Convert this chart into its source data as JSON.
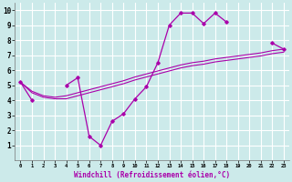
{
  "x": [
    0,
    1,
    2,
    3,
    4,
    5,
    6,
    7,
    8,
    9,
    10,
    11,
    12,
    13,
    14,
    15,
    16,
    17,
    18,
    19,
    20,
    21,
    22,
    23
  ],
  "windchill": [
    5.2,
    4.0,
    null,
    null,
    5.0,
    5.5,
    1.6,
    1.0,
    2.6,
    3.1,
    4.1,
    4.9,
    6.5,
    9.0,
    9.8,
    9.8,
    9.1,
    9.8,
    9.2,
    null,
    null,
    null,
    7.8,
    7.4
  ],
  "temp_line1": [
    5.2,
    4.6,
    4.3,
    4.2,
    4.3,
    4.5,
    4.7,
    4.9,
    5.1,
    5.3,
    5.55,
    5.75,
    5.95,
    6.15,
    6.35,
    6.5,
    6.6,
    6.75,
    6.85,
    6.95,
    7.05,
    7.15,
    7.3,
    7.4
  ],
  "temp_line2": [
    5.2,
    4.5,
    4.2,
    4.1,
    4.1,
    4.3,
    4.5,
    4.7,
    4.9,
    5.1,
    5.35,
    5.55,
    5.75,
    5.95,
    6.15,
    6.3,
    6.4,
    6.55,
    6.65,
    6.75,
    6.85,
    6.95,
    7.1,
    7.2
  ],
  "line_color": "#aa00aa",
  "bg_color": "#cceaea",
  "grid_color": "#ffffff",
  "xlabel": "Windchill (Refroidissement éolien,°C)",
  "xlim": [
    -0.5,
    23.5
  ],
  "ylim": [
    0,
    10.5
  ],
  "xticks": [
    0,
    1,
    2,
    3,
    4,
    5,
    6,
    7,
    8,
    9,
    10,
    11,
    12,
    13,
    14,
    15,
    16,
    17,
    18,
    19,
    20,
    21,
    22,
    23
  ],
  "yticks": [
    1,
    2,
    3,
    4,
    5,
    6,
    7,
    8,
    9,
    10
  ],
  "xlabel_color": "#aa00aa"
}
